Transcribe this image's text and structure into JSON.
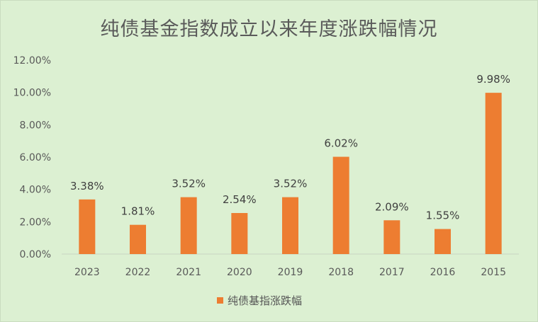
{
  "chart_data": {
    "type": "bar",
    "title": "纯债基金指数成立以来年度涨跌幅情况",
    "categories": [
      "2023",
      "2022",
      "2021",
      "2020",
      "2019",
      "2018",
      "2017",
      "2016",
      "2015"
    ],
    "series": [
      {
        "name": "纯债基指涨跌幅",
        "values": [
          3.38,
          1.81,
          3.52,
          2.54,
          3.52,
          6.02,
          2.09,
          1.55,
          9.98
        ],
        "data_labels": [
          "3.38%",
          "1.81%",
          "3.52%",
          "2.54%",
          "3.52%",
          "6.02%",
          "2.09%",
          "1.55%",
          "9.98%"
        ],
        "color": "#ed7d31"
      }
    ],
    "y_ticks": [
      "0.00%",
      "2.00%",
      "4.00%",
      "6.00%",
      "8.00%",
      "10.00%",
      "12.00%"
    ],
    "ylim": [
      0,
      12
    ],
    "grid": false,
    "legend": "bottom",
    "background": "#dcf0d2"
  }
}
